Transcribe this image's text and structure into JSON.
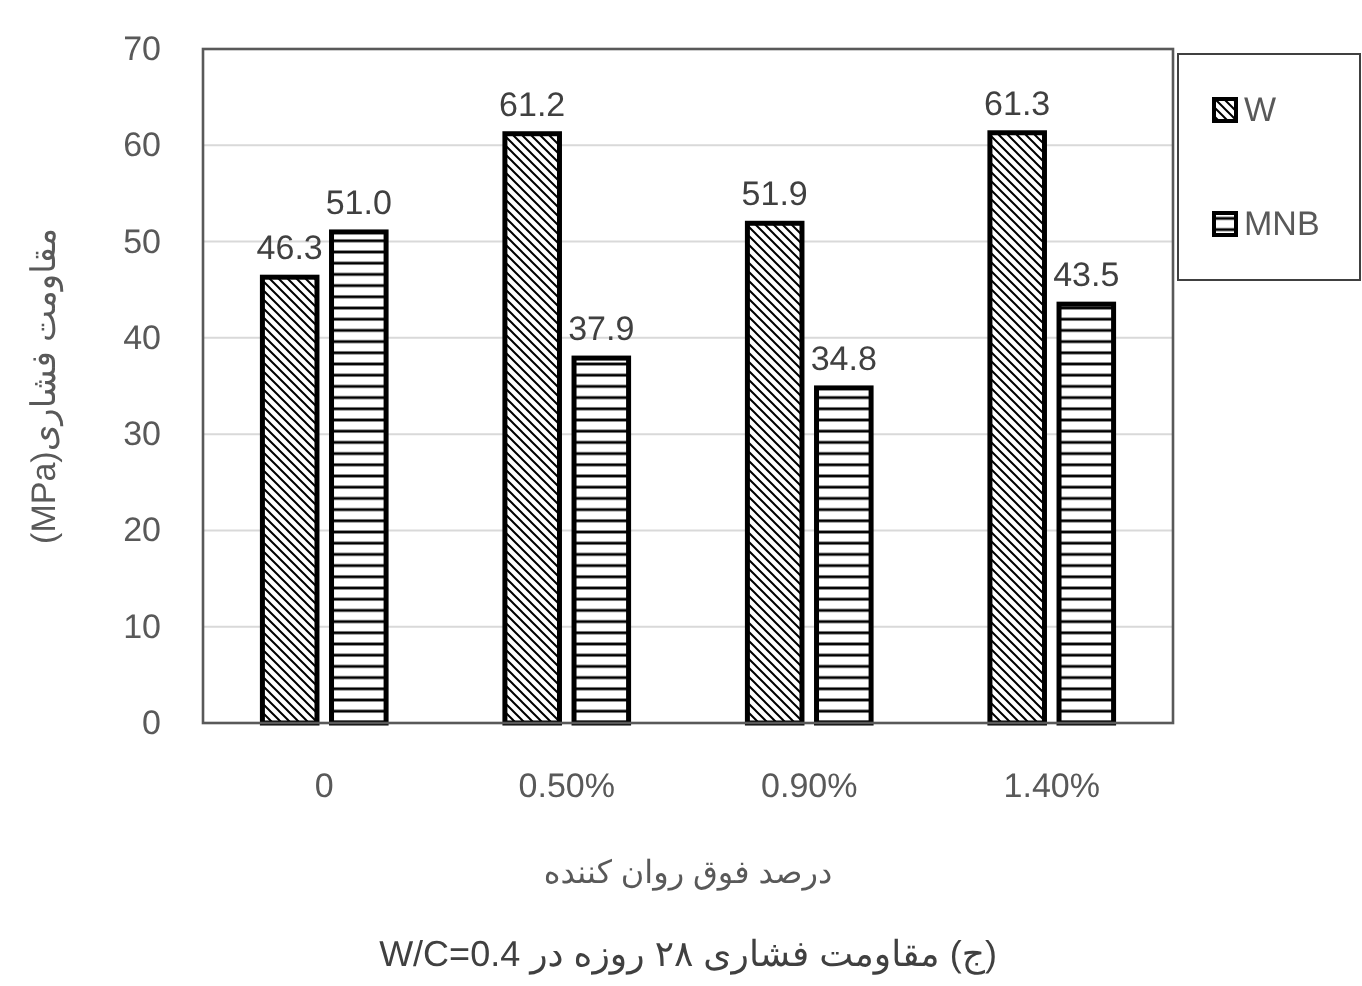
{
  "chart_data": {
    "type": "bar",
    "categories": [
      "0",
      "0.50%",
      "0.90%",
      "1.40%"
    ],
    "series": [
      {
        "name": "W",
        "color": "#000000",
        "values": [
          46.3,
          61.2,
          51.9,
          61.3
        ],
        "value_labels": [
          "46.3",
          "61.2",
          "51.9",
          "61.3"
        ]
      },
      {
        "name": "MNB",
        "color": "#000000",
        "values": [
          51.0,
          37.9,
          34.8,
          43.5
        ],
        "value_labels": [
          "51.0",
          "37.9",
          "34.8",
          "43.5"
        ]
      }
    ],
    "xlabel": "درصد فوق روان کننده",
    "ylabel": "مقاومت فشاری(MPa)",
    "annotations": [
      "(ج) مقاومت فشاری ۲۸ روزه در W/C=0.4"
    ],
    "ylim": [
      0,
      70
    ],
    "yticks": [
      0,
      10,
      20,
      30,
      40,
      50,
      60,
      70
    ],
    "grid": "y",
    "legend": "top right"
  }
}
